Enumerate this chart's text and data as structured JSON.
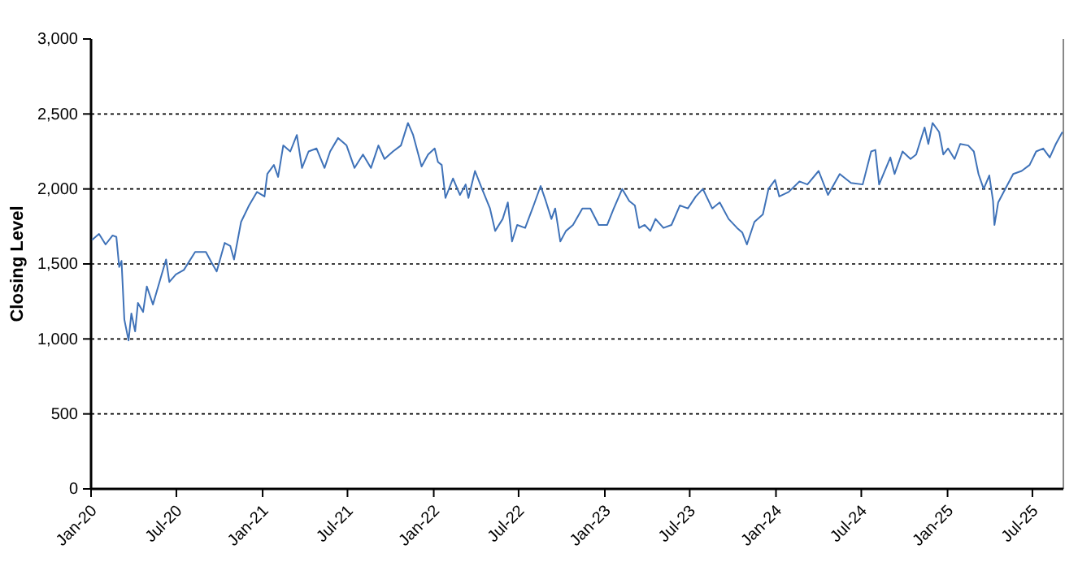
{
  "chart_data": {
    "type": "line",
    "ylabel": "Closing Level",
    "xlim": [
      "2020-01-01",
      "2025-09-05"
    ],
    "xticks": [
      {
        "value": "2020-01-01",
        "label": "Jan-20"
      },
      {
        "value": "2020-07-01",
        "label": "Jul-20"
      },
      {
        "value": "2021-01-01",
        "label": "Jan-21"
      },
      {
        "value": "2021-07-01",
        "label": "Jul-21"
      },
      {
        "value": "2022-01-01",
        "label": "Jan-22"
      },
      {
        "value": "2022-07-01",
        "label": "Jul-22"
      },
      {
        "value": "2023-01-01",
        "label": "Jan-23"
      },
      {
        "value": "2023-07-01",
        "label": "Jul-23"
      },
      {
        "value": "2024-01-01",
        "label": "Jan-24"
      },
      {
        "value": "2024-07-01",
        "label": "Jul-24"
      },
      {
        "value": "2025-01-01",
        "label": "Jan-25"
      },
      {
        "value": "2025-07-01",
        "label": "Jul-25"
      }
    ],
    "ylim": [
      0,
      3000
    ],
    "yticks": [
      0,
      500,
      {
        "value": 1000,
        "label": "1,000"
      },
      {
        "value": 1500,
        "label": "1,500"
      },
      {
        "value": 2000,
        "label": "2,000"
      },
      {
        "value": 2500,
        "label": "2,500"
      },
      {
        "value": 3000,
        "label": "3,000"
      }
    ],
    "grid": "y",
    "line_style": "solid",
    "marker": "none",
    "x": [
      "2020-01-03",
      "2020-01-18",
      "2020-02-01",
      "2020-02-16",
      "2020-02-24",
      "2020-03-01",
      "2020-03-06",
      "2020-03-12",
      "2020-03-21",
      "2020-03-27",
      "2020-04-04",
      "2020-04-10",
      "2020-04-21",
      "2020-04-29",
      "2020-05-12",
      "2020-05-26",
      "2020-06-09",
      "2020-06-16",
      "2020-06-30",
      "2020-07-17",
      "2020-08-10",
      "2020-09-02",
      "2020-09-14",
      "2020-09-25",
      "2020-10-12",
      "2020-10-24",
      "2020-11-01",
      "2020-11-16",
      "2020-12-03",
      "2020-12-20",
      "2021-01-05",
      "2021-01-11",
      "2021-01-25",
      "2021-02-03",
      "2021-02-14",
      "2021-03-01",
      "2021-03-15",
      "2021-03-26",
      "2021-04-09",
      "2021-04-26",
      "2021-05-13",
      "2021-05-25",
      "2021-06-11",
      "2021-06-29",
      "2021-07-16",
      "2021-08-03",
      "2021-08-20",
      "2021-09-05",
      "2021-09-18",
      "2021-10-06",
      "2021-10-23",
      "2021-11-07",
      "2021-11-18",
      "2021-12-06",
      "2021-12-20",
      "2022-01-03",
      "2022-01-10",
      "2022-01-18",
      "2022-01-26",
      "2022-02-11",
      "2022-02-26",
      "2022-03-10",
      "2022-03-16",
      "2022-03-30",
      "2022-04-14",
      "2022-05-01",
      "2022-05-12",
      "2022-05-28",
      "2022-06-08",
      "2022-06-17",
      "2022-06-28",
      "2022-07-15",
      "2022-08-02",
      "2022-08-17",
      "2022-08-28",
      "2022-09-09",
      "2022-09-17",
      "2022-09-28",
      "2022-10-10",
      "2022-10-25",
      "2022-11-14",
      "2022-12-01",
      "2022-12-19",
      "2023-01-06",
      "2023-01-20",
      "2023-02-07",
      "2023-02-22",
      "2023-03-06",
      "2023-03-15",
      "2023-03-27",
      "2023-04-08",
      "2023-04-19",
      "2023-05-06",
      "2023-05-23",
      "2023-06-10",
      "2023-06-27",
      "2023-07-14",
      "2023-07-29",
      "2023-08-18",
      "2023-09-03",
      "2023-09-22",
      "2023-10-10",
      "2023-10-21",
      "2023-10-31",
      "2023-11-16",
      "2023-12-04",
      "2023-12-16",
      "2023-12-30",
      "2024-01-08",
      "2024-01-28",
      "2024-02-20",
      "2024-03-08",
      "2024-04-01",
      "2024-04-21",
      "2024-05-16",
      "2024-06-09",
      "2024-07-04",
      "2024-07-22",
      "2024-07-31",
      "2024-08-08",
      "2024-09-01",
      "2024-09-10",
      "2024-09-27",
      "2024-10-14",
      "2024-10-26",
      "2024-11-13",
      "2024-11-21",
      "2024-11-30",
      "2024-12-14",
      "2024-12-23",
      "2025-01-02",
      "2025-01-16",
      "2025-01-28",
      "2025-02-14",
      "2025-02-26",
      "2025-03-08",
      "2025-03-19",
      "2025-03-31",
      "2025-04-08",
      "2025-04-11",
      "2025-04-19",
      "2025-05-04",
      "2025-05-21",
      "2025-06-08",
      "2025-06-25",
      "2025-07-09",
      "2025-07-24",
      "2025-08-07",
      "2025-08-20",
      "2025-09-03"
    ],
    "series": [
      {
        "color": "#3f72b8",
        "values": [
          1660,
          1700,
          1630,
          1690,
          1680,
          1480,
          1520,
          1130,
          990,
          1170,
          1050,
          1240,
          1180,
          1350,
          1230,
          1380,
          1530,
          1380,
          1430,
          1460,
          1580,
          1580,
          1510,
          1450,
          1640,
          1620,
          1530,
          1780,
          1890,
          1980,
          1950,
          2100,
          2160,
          2080,
          2290,
          2250,
          2360,
          2140,
          2250,
          2270,
          2140,
          2250,
          2340,
          2290,
          2140,
          2230,
          2140,
          2290,
          2200,
          2250,
          2290,
          2440,
          2360,
          2150,
          2230,
          2270,
          2180,
          2160,
          1940,
          2070,
          1960,
          2030,
          1940,
          2120,
          2000,
          1870,
          1720,
          1800,
          1910,
          1650,
          1760,
          1740,
          1890,
          2020,
          1920,
          1800,
          1870,
          1650,
          1720,
          1760,
          1870,
          1870,
          1760,
          1760,
          1870,
          2000,
          1920,
          1890,
          1740,
          1760,
          1720,
          1800,
          1740,
          1760,
          1890,
          1870,
          1950,
          2000,
          1870,
          1910,
          1800,
          1740,
          1710,
          1630,
          1780,
          1830,
          2000,
          2060,
          1950,
          1980,
          2050,
          2030,
          2120,
          1960,
          2100,
          2040,
          2030,
          2250,
          2260,
          2030,
          2210,
          2100,
          2250,
          2200,
          2230,
          2410,
          2300,
          2440,
          2380,
          2230,
          2270,
          2200,
          2300,
          2290,
          2250,
          2100,
          2000,
          2090,
          1920,
          1760,
          1910,
          2000,
          2100,
          2120,
          2160,
          2250,
          2270,
          2210,
          2300,
          2380
        ]
      }
    ]
  }
}
